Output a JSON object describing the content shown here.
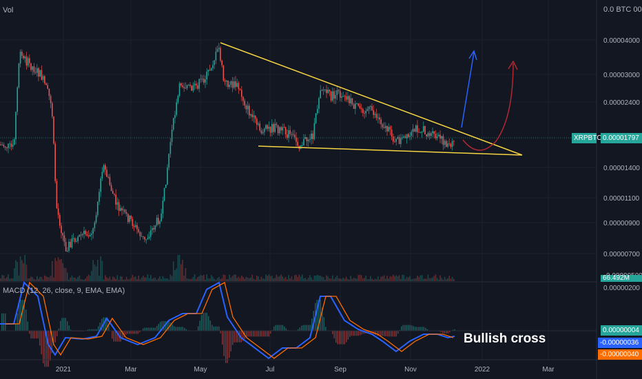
{
  "chart_data": {
    "type": "line",
    "symbol": "XRPBTC",
    "currency": "BTC",
    "price": {
      "last": "0.00001797",
      "scale": "log",
      "ticks": [
        "0.00004000",
        "0.00003000",
        "0.00002400",
        "0.00001400",
        "0.00001100",
        "0.00000900",
        "0.00000700"
      ],
      "top_label": "0.0 BTC 00",
      "overlap_label": "0.00000500"
    },
    "volume": {
      "label": "Vol",
      "value_label": "66.492M"
    },
    "macd": {
      "label": "MACD (12, 26, close, 9, EMA, EMA)",
      "top_tick": "0.00000200",
      "histogram_value": "0.00000004",
      "macd_value": "-0.00000036",
      "signal_value": "-0.00000040"
    },
    "x_ticks": [
      "2021",
      "Mar",
      "May",
      "Jul",
      "Sep",
      "Nov",
      "2022",
      "Mar"
    ],
    "annotation": "Bullish cross",
    "colors": {
      "up": "#26a69a",
      "down": "#ef5350",
      "trendline": "#f5d442",
      "arrow_up": "#2962ff",
      "arrow_curve": "#b22833",
      "macd": "#2962ff",
      "signal": "#ff6d00",
      "price_label": "#26a69a"
    }
  }
}
